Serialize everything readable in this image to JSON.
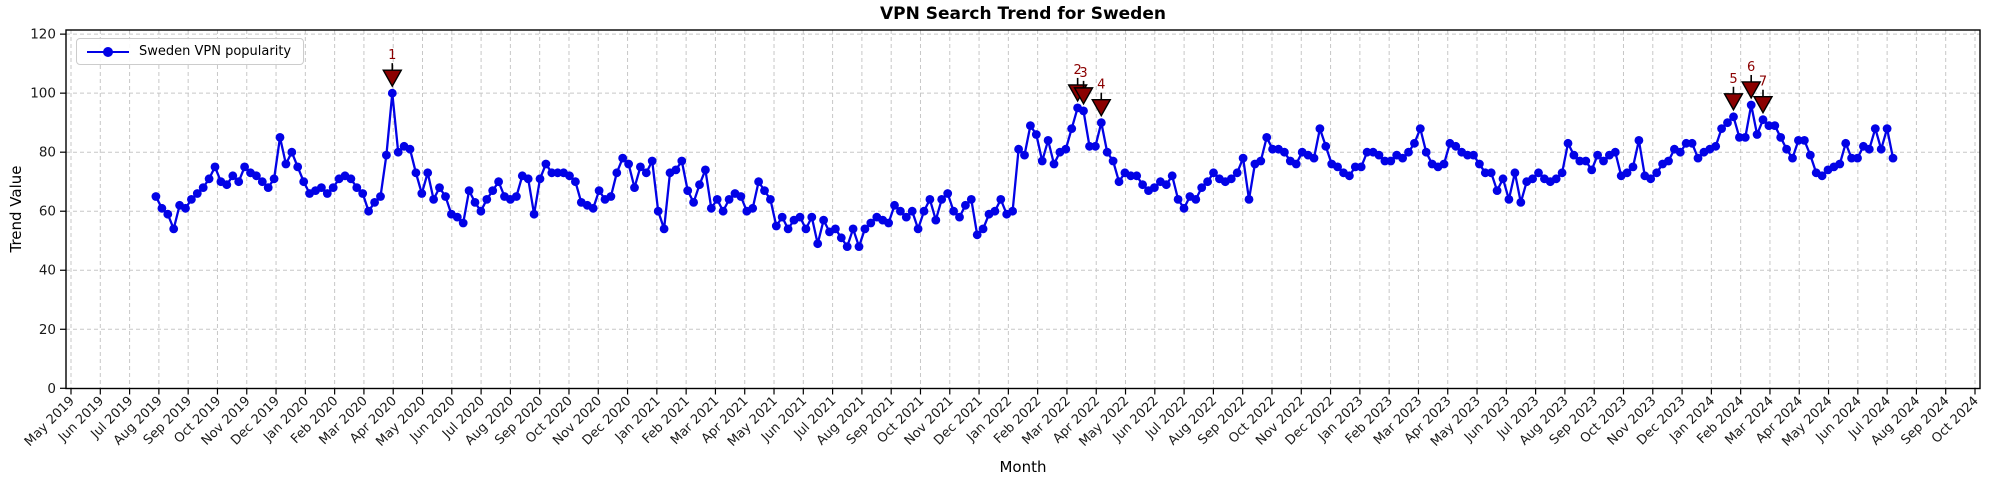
{
  "chart_data": {
    "type": "line",
    "title": "VPN Search Trend for Sweden",
    "xlabel": "Month",
    "ylabel": "Trend Value",
    "yticks": [
      0,
      20,
      40,
      60,
      80,
      100,
      120
    ],
    "ylim": [
      0,
      121.4
    ],
    "grid": true,
    "legend": {
      "position": "upper left",
      "entries": [
        "Sweden VPN popularity"
      ]
    },
    "xtick_labels": [
      "May 2019",
      "Jun 2019",
      "Jul 2019",
      "Aug 2019",
      "Sep 2019",
      "Oct 2019",
      "Nov 2019",
      "Dec 2019",
      "Jan 2020",
      "Feb 2020",
      "Mar 2020",
      "Apr 2020",
      "May 2020",
      "Jun 2020",
      "Jul 2020",
      "Aug 2020",
      "Sep 2020",
      "Oct 2020",
      "Nov 2020",
      "Dec 2020",
      "Jan 2021",
      "Feb 2021",
      "Mar 2021",
      "Apr 2021",
      "May 2021",
      "Jun 2021",
      "Jul 2021",
      "Aug 2021",
      "Sep 2021",
      "Oct 2021",
      "Nov 2021",
      "Dec 2021",
      "Jan 2022",
      "Feb 2022",
      "Mar 2022",
      "Apr 2022",
      "May 2022",
      "Jun 2022",
      "Jul 2022",
      "Aug 2022",
      "Sep 2022",
      "Oct 2022",
      "Nov 2022",
      "Dec 2022",
      "Jan 2023",
      "Feb 2023",
      "Mar 2023",
      "Apr 2023",
      "May 2023",
      "Jun 2023",
      "Jul 2023",
      "Aug 2023",
      "Sep 2023",
      "Oct 2023",
      "Nov 2023",
      "Dec 2023",
      "Jan 2024",
      "Feb 2024",
      "Mar 2024",
      "Apr 2024",
      "May 2024",
      "Jun 2024",
      "Jul 2024",
      "Aug 2024",
      "Sep 2024",
      "Oct 2024"
    ],
    "x_data_span": {
      "first_point_month_index": 2.9,
      "last_point_month_index": 62.2,
      "note": "weekly points, ~Aug 2019 to ~Jul 2024; month index counted from the May 2019 tick"
    },
    "series": [
      {
        "name": "Sweden VPN popularity",
        "values": [
          65,
          61,
          59,
          54,
          62,
          61,
          64,
          66,
          68,
          71,
          75,
          70,
          69,
          72,
          70,
          75,
          73,
          72,
          70,
          68,
          71,
          85,
          76,
          80,
          75,
          70,
          66,
          67,
          68,
          66,
          68,
          71,
          72,
          71,
          68,
          66,
          60,
          63,
          65,
          79,
          100,
          80,
          82,
          81,
          73,
          66,
          73,
          64,
          68,
          65,
          59,
          58,
          56,
          67,
          63,
          60,
          64,
          67,
          70,
          65,
          64,
          65,
          72,
          71,
          59,
          71,
          76,
          73,
          73,
          73,
          72,
          70,
          63,
          62,
          61,
          67,
          64,
          65,
          73,
          78,
          76,
          68,
          75,
          73,
          77,
          60,
          54,
          73,
          74,
          77,
          67,
          63,
          69,
          74,
          61,
          64,
          60,
          64,
          66,
          65,
          60,
          61,
          70,
          67,
          64,
          55,
          58,
          54,
          57,
          58,
          54,
          58,
          49,
          57,
          53,
          54,
          51,
          48,
          54,
          48,
          54,
          56,
          58,
          57,
          56,
          62,
          60,
          58,
          60,
          54,
          60,
          64,
          57,
          64,
          66,
          60,
          58,
          62,
          64,
          52,
          54,
          59,
          60,
          64,
          59,
          60,
          81,
          79,
          89,
          86,
          77,
          84,
          76,
          80,
          81,
          88,
          95,
          94,
          82,
          82,
          90,
          80,
          77,
          70,
          73,
          72,
          72,
          69,
          67,
          68,
          70,
          69,
          72,
          64,
          61,
          65,
          64,
          68,
          70,
          73,
          71,
          70,
          71,
          73,
          78,
          64,
          76,
          77,
          85,
          81,
          81,
          80,
          77,
          76,
          80,
          79,
          78,
          88,
          82,
          76,
          75,
          73,
          72,
          75,
          75,
          80,
          80,
          79,
          77,
          77,
          79,
          78,
          80,
          83,
          88,
          80,
          76,
          75,
          76,
          83,
          82,
          80,
          79,
          79,
          76,
          73,
          73,
          67,
          71,
          64,
          73,
          63,
          70,
          71,
          73,
          71,
          70,
          71,
          73,
          83,
          79,
          77,
          77,
          74,
          79,
          77,
          79,
          80,
          72,
          73,
          75,
          84,
          72,
          71,
          73,
          76,
          77,
          81,
          80,
          83,
          83,
          78,
          80,
          81,
          82,
          88,
          90,
          92,
          85,
          85,
          96,
          86,
          91,
          89,
          89,
          85,
          81,
          78,
          84,
          84,
          79,
          73,
          72,
          74,
          75,
          76,
          83,
          78,
          78,
          82,
          81,
          88,
          81,
          88,
          78
        ]
      }
    ],
    "annotations": [
      {
        "label": "1",
        "index": 40,
        "value": 100
      },
      {
        "label": "2",
        "index": 156,
        "value": 95
      },
      {
        "label": "3",
        "index": 157,
        "value": 94
      },
      {
        "label": "4",
        "index": 160,
        "value": 90
      },
      {
        "label": "5",
        "index": 267,
        "value": 92
      },
      {
        "label": "6",
        "index": 270,
        "value": 96
      },
      {
        "label": "7",
        "index": 272,
        "value": 91
      }
    ]
  },
  "colors": {
    "line": "#0202e6",
    "marker": "#0202e6",
    "annotation_fill": "#8b0000",
    "annotation_edge": "#000000",
    "annotation_text": "#8b0000",
    "grid": "#c7c7c7",
    "spine": "#000000",
    "tick_text": "#1a1a1a",
    "background": "#ffffff"
  }
}
